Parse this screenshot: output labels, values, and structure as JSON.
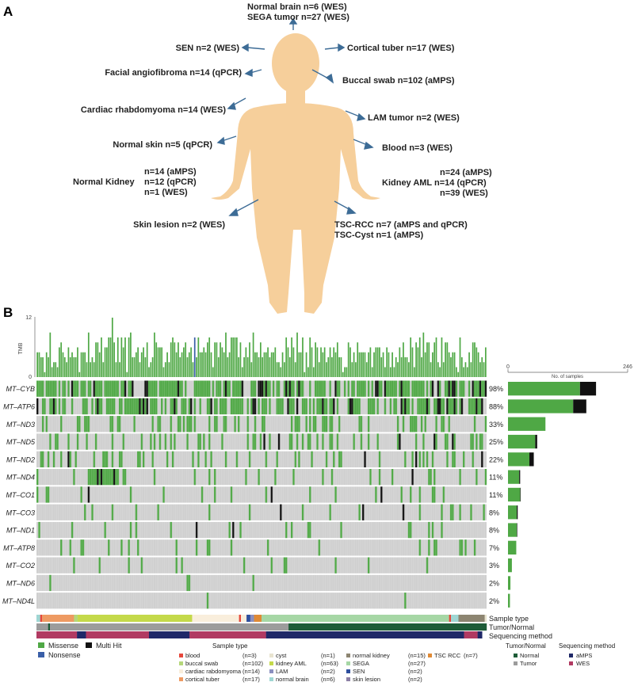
{
  "panel_a": {
    "label": "A",
    "annotations": [
      {
        "key": "normal-brain",
        "lines": [
          "Normal brain n=6    (WES)",
          "SEGA tumor  n=27 (WES)"
        ]
      },
      {
        "key": "sen",
        "lines": [
          "SEN n=2 (WES)"
        ]
      },
      {
        "key": "cortical-tuber",
        "lines": [
          "Cortical tuber n=17 (WES)"
        ]
      },
      {
        "key": "facial-angiofibroma",
        "lines": [
          "Facial angiofibroma n=14 (qPCR)"
        ]
      },
      {
        "key": "buccal-swab",
        "lines": [
          "Buccal swab n=102 (aMPS)"
        ]
      },
      {
        "key": "cardiac-rhabdomyoma",
        "lines": [
          "Cardiac rhabdomyoma n=14 (WES)"
        ]
      },
      {
        "key": "lam-tumor",
        "lines": [
          "LAM tumor n=2 (WES)"
        ]
      },
      {
        "key": "normal-skin",
        "lines": [
          "Normal skin n=5 (qPCR)"
        ]
      },
      {
        "key": "blood",
        "lines": [
          "Blood n=3 (WES)"
        ]
      },
      {
        "key": "normal-kidney-title",
        "lines": [
          "Normal Kidney"
        ]
      },
      {
        "key": "normal-kidney-values",
        "lines": [
          "n=14    (aMPS)",
          "n=12    (qPCR)",
          "n=1      (WES)"
        ]
      },
      {
        "key": "kidney-aml-values",
        "lines": [
          "n=24   (aMPS)",
          "Kidney AML n=14   (qPCR)",
          "n=39   (WES)"
        ]
      },
      {
        "key": "skin-lesion",
        "lines": [
          "Skin lesion n=2 (WES)"
        ]
      },
      {
        "key": "tsc-rcc",
        "lines": [
          "TSC-RCC n=7 (aMPS and qPCR)",
          "TSC-Cyst n=1 (aMPS)"
        ]
      }
    ]
  },
  "panel_b": {
    "label": "B",
    "legend": {
      "mutation_types": [
        {
          "label": "Missense",
          "color": "#4fa845"
        },
        {
          "label": "Nonsense",
          "color": "#3a5fa8"
        },
        {
          "label": "Multi Hit",
          "color": "#111111"
        }
      ],
      "sample_type_title": "Sample type",
      "sample_types": [
        {
          "label": "blood",
          "n": "(n=3)",
          "color": "#e6473b"
        },
        {
          "label": "buccal swab",
          "n": "(n=102)",
          "color": "#b5d77a"
        },
        {
          "label": "cardiac rabdomyoma",
          "n": "(n=14)",
          "color": "#f9eedc"
        },
        {
          "label": "cortical tuber",
          "n": "(n=17)",
          "color": "#ee9a62"
        },
        {
          "label": "cyst",
          "n": "(n=1)",
          "color": "#e8e4d0"
        },
        {
          "label": "kidney AML",
          "n": "(n=63)",
          "color": "#c4d94a"
        },
        {
          "label": "LAM",
          "n": "(n=2)",
          "color": "#8a8fbf"
        },
        {
          "label": "normal brain",
          "n": "(n=6)",
          "color": "#9fd6d3"
        },
        {
          "label": "normal kidney",
          "n": "(n=15)",
          "color": "#8d8571"
        },
        {
          "label": "SEGA",
          "n": "(n=27)",
          "color": "#a6d7a5"
        },
        {
          "label": "SEN",
          "n": "(n=2)",
          "color": "#2e4f9e"
        },
        {
          "label": "skin lesion",
          "n": "(n=2)",
          "color": "#8c7fa5"
        },
        {
          "label": "TSC RCC",
          "n": "(n=7)",
          "color": "#e08a35"
        }
      ],
      "tumor_normal_title": "Tumor/Normal",
      "tumor_normal": [
        {
          "label": "Normal",
          "color": "#1e5c38"
        },
        {
          "label": "Tumor",
          "color": "#9c9c9c"
        }
      ],
      "seq_title": "Sequencing method",
      "seq_methods": [
        {
          "label": "aMPS",
          "color": "#1f2868"
        },
        {
          "label": "WES",
          "color": "#b13a62"
        }
      ]
    },
    "track_labels": [
      "Sample type",
      "Tumor/Normal",
      "Sequencing method"
    ]
  },
  "chart_data": {
    "type": "oncoplot",
    "tmb": {
      "ylabel": "TMB",
      "ylim": [
        0,
        12
      ],
      "ticks": [
        "0",
        "12"
      ]
    },
    "samples_axis": {
      "label": "No. of samples",
      "range": [
        0,
        246
      ],
      "ticks": [
        "0",
        "246"
      ]
    },
    "genes": [
      {
        "name": "MT–CYB",
        "pct": "98%",
        "missense": 148,
        "multi": 33
      },
      {
        "name": "MT–ATP6",
        "pct": "88%",
        "missense": 134,
        "multi": 27
      },
      {
        "name": "MT–ND3",
        "pct": "33%",
        "missense": 77,
        "multi": 0
      },
      {
        "name": "MT–ND5",
        "pct": "25%",
        "missense": 56,
        "multi": 4
      },
      {
        "name": "MT–ND2",
        "pct": "22%",
        "missense": 44,
        "multi": 9
      },
      {
        "name": "MT–ND4",
        "pct": "11%",
        "missense": 23,
        "multi": 2
      },
      {
        "name": "MT–CO1",
        "pct": "11%",
        "missense": 25,
        "multi": 1
      },
      {
        "name": "MT–CO3",
        "pct": "8%",
        "missense": 18,
        "multi": 2
      },
      {
        "name": "MT–ND1",
        "pct": "8%",
        "missense": 18,
        "multi": 1
      },
      {
        "name": "MT–ATP8",
        "pct": "7%",
        "missense": 17,
        "multi": 0
      },
      {
        "name": "MT–CO2",
        "pct": "3%",
        "missense": 8,
        "multi": 0
      },
      {
        "name": "MT–ND6",
        "pct": "2%",
        "missense": 5,
        "multi": 0
      },
      {
        "name": "MT–ND4L",
        "pct": "2%",
        "missense": 4,
        "multi": 0
      }
    ]
  }
}
